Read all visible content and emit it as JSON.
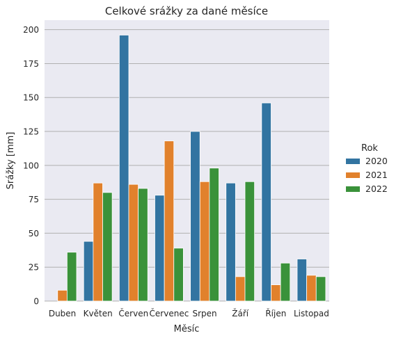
{
  "chart_data": {
    "type": "bar",
    "title": "Celkové srážky za dané měsíce",
    "xlabel": "Měsíc",
    "ylabel": "Srážky [mm]",
    "ylim": [
      0,
      207
    ],
    "yticks": [
      0,
      25,
      50,
      75,
      100,
      125,
      150,
      175,
      200
    ],
    "grid": true,
    "legend_position": "right",
    "legend_title": "Rok",
    "categories": [
      "Duben",
      "Květen",
      "Červen",
      "Červenec",
      "Srpen",
      "Žáří",
      "Říjen",
      "Listopad"
    ],
    "series": [
      {
        "name": "2020",
        "color": "#3274a1",
        "values": [
          0,
          44,
          196,
          78,
          125,
          87,
          146,
          31
        ]
      },
      {
        "name": "2021",
        "color": "#e1812c",
        "values": [
          8,
          87,
          86,
          118,
          88,
          18,
          12,
          19
        ]
      },
      {
        "name": "2022",
        "color": "#3a923a",
        "values": [
          36,
          80,
          83,
          39,
          98,
          88,
          28,
          18
        ]
      }
    ]
  }
}
